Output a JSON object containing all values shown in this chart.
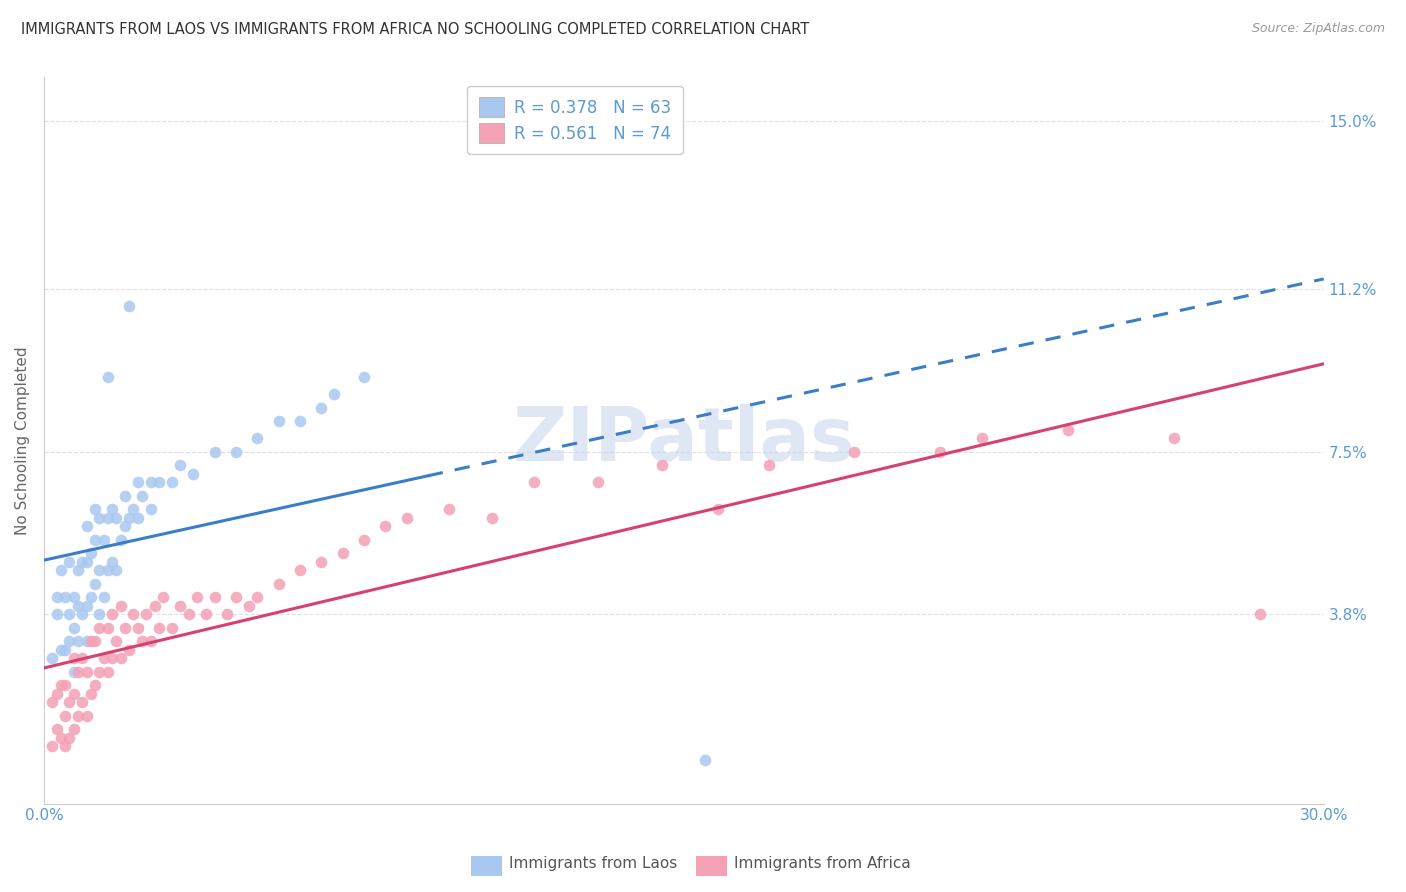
{
  "title": "IMMIGRANTS FROM LAOS VS IMMIGRANTS FROM AFRICA NO SCHOOLING COMPLETED CORRELATION CHART",
  "source": "Source: ZipAtlas.com",
  "ylabel": "No Schooling Completed",
  "ytick_labels": [
    "3.8%",
    "7.5%",
    "11.2%",
    "15.0%"
  ],
  "ytick_values": [
    0.038,
    0.075,
    0.112,
    0.15
  ],
  "xlim": [
    0.0,
    0.3
  ],
  "ylim": [
    -0.005,
    0.16
  ],
  "legend_laos": "R = 0.378   N = 63",
  "legend_africa": "R = 0.561   N = 74",
  "legend_label_laos": "Immigrants from Laos",
  "legend_label_africa": "Immigrants from Africa",
  "color_laos": "#A8C8F0",
  "color_africa": "#F4A0B5",
  "color_laos_line": "#3A7DC8",
  "color_africa_line": "#D84070",
  "color_tick_labels": "#5B9BD5",
  "watermark_color": "#C8D8EC",
  "background_color": "#FFFFFF",
  "grid_color": "#DDDDDD",
  "laos_x": [
    0.002,
    0.003,
    0.003,
    0.004,
    0.004,
    0.005,
    0.005,
    0.006,
    0.006,
    0.006,
    0.007,
    0.007,
    0.007,
    0.008,
    0.008,
    0.008,
    0.009,
    0.009,
    0.01,
    0.01,
    0.01,
    0.01,
    0.011,
    0.011,
    0.012,
    0.012,
    0.012,
    0.013,
    0.013,
    0.013,
    0.014,
    0.014,
    0.015,
    0.015,
    0.016,
    0.016,
    0.017,
    0.017,
    0.018,
    0.019,
    0.019,
    0.02,
    0.021,
    0.022,
    0.022,
    0.023,
    0.025,
    0.025,
    0.027,
    0.03,
    0.032,
    0.035,
    0.04,
    0.045,
    0.05,
    0.055,
    0.06,
    0.065,
    0.068,
    0.075,
    0.015,
    0.02,
    0.155
  ],
  "laos_y": [
    0.028,
    0.038,
    0.042,
    0.03,
    0.048,
    0.03,
    0.042,
    0.032,
    0.038,
    0.05,
    0.025,
    0.035,
    0.042,
    0.032,
    0.04,
    0.048,
    0.038,
    0.05,
    0.032,
    0.04,
    0.05,
    0.058,
    0.042,
    0.052,
    0.045,
    0.055,
    0.062,
    0.038,
    0.048,
    0.06,
    0.042,
    0.055,
    0.048,
    0.06,
    0.05,
    0.062,
    0.048,
    0.06,
    0.055,
    0.058,
    0.065,
    0.06,
    0.062,
    0.06,
    0.068,
    0.065,
    0.062,
    0.068,
    0.068,
    0.068,
    0.072,
    0.07,
    0.075,
    0.075,
    0.078,
    0.082,
    0.082,
    0.085,
    0.088,
    0.092,
    0.092,
    0.108,
    0.005
  ],
  "africa_x": [
    0.002,
    0.002,
    0.003,
    0.003,
    0.004,
    0.004,
    0.005,
    0.005,
    0.005,
    0.006,
    0.006,
    0.007,
    0.007,
    0.007,
    0.008,
    0.008,
    0.009,
    0.009,
    0.01,
    0.01,
    0.011,
    0.011,
    0.012,
    0.012,
    0.013,
    0.013,
    0.014,
    0.015,
    0.015,
    0.016,
    0.016,
    0.017,
    0.018,
    0.018,
    0.019,
    0.02,
    0.021,
    0.022,
    0.023,
    0.024,
    0.025,
    0.026,
    0.027,
    0.028,
    0.03,
    0.032,
    0.034,
    0.036,
    0.038,
    0.04,
    0.043,
    0.045,
    0.048,
    0.05,
    0.055,
    0.06,
    0.065,
    0.07,
    0.075,
    0.08,
    0.085,
    0.095,
    0.105,
    0.115,
    0.13,
    0.145,
    0.158,
    0.17,
    0.19,
    0.21,
    0.22,
    0.24,
    0.265,
    0.285
  ],
  "africa_y": [
    0.008,
    0.018,
    0.012,
    0.02,
    0.01,
    0.022,
    0.008,
    0.015,
    0.022,
    0.01,
    0.018,
    0.012,
    0.02,
    0.028,
    0.015,
    0.025,
    0.018,
    0.028,
    0.015,
    0.025,
    0.02,
    0.032,
    0.022,
    0.032,
    0.025,
    0.035,
    0.028,
    0.025,
    0.035,
    0.028,
    0.038,
    0.032,
    0.028,
    0.04,
    0.035,
    0.03,
    0.038,
    0.035,
    0.032,
    0.038,
    0.032,
    0.04,
    0.035,
    0.042,
    0.035,
    0.04,
    0.038,
    0.042,
    0.038,
    0.042,
    0.038,
    0.042,
    0.04,
    0.042,
    0.045,
    0.048,
    0.05,
    0.052,
    0.055,
    0.058,
    0.06,
    0.062,
    0.06,
    0.068,
    0.068,
    0.072,
    0.062,
    0.072,
    0.075,
    0.075,
    0.078,
    0.08,
    0.078,
    0.038
  ],
  "laos_line_solid_end": 0.09,
  "r_laos": 0.378,
  "r_africa": 0.561
}
